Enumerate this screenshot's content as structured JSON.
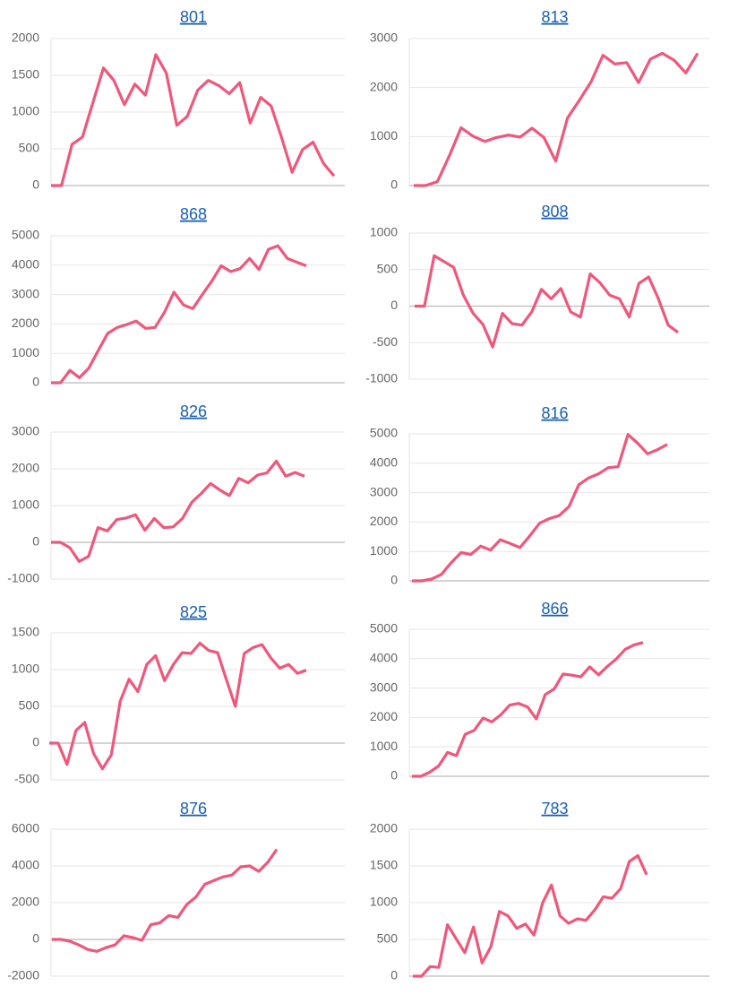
{
  "chart_data": [
    {
      "type": "line",
      "title": "801",
      "color": "#f0577a",
      "ylim": [
        0,
        2000
      ],
      "yticks": [
        0,
        500,
        1000,
        1500,
        2000
      ],
      "grid": true,
      "values": [
        0,
        0,
        560,
        660,
        1130,
        1600,
        1430,
        1100,
        1380,
        1230,
        1780,
        1530,
        820,
        940,
        1300,
        1430,
        1360,
        1250,
        1400,
        850,
        1200,
        1080,
        650,
        180,
        490,
        590,
        300,
        130
      ]
    },
    {
      "type": "line",
      "title": "813",
      "color": "#f0577a",
      "ylim": [
        0,
        3000
      ],
      "yticks": [
        0,
        1000,
        2000,
        3000
      ],
      "grid": true,
      "values": [
        0,
        0,
        80,
        600,
        1180,
        1010,
        900,
        980,
        1030,
        990,
        1170,
        980,
        500,
        1380,
        1740,
        2120,
        2660,
        2480,
        2510,
        2100,
        2580,
        2700,
        2560,
        2300,
        2700
      ]
    },
    {
      "type": "line",
      "title": "868",
      "color": "#f0577a",
      "ylim": [
        0,
        5000
      ],
      "yticks": [
        0,
        1000,
        2000,
        3000,
        4000,
        5000
      ],
      "grid": true,
      "values": [
        0,
        0,
        420,
        170,
        500,
        1100,
        1680,
        1880,
        1980,
        2100,
        1850,
        1880,
        2400,
        3080,
        2650,
        2520,
        3000,
        3450,
        3980,
        3780,
        3880,
        4230,
        3850,
        4540,
        4660,
        4230,
        4100,
        3980
      ]
    },
    {
      "type": "line",
      "title": "808",
      "color": "#f0577a",
      "ylim": [
        -1000,
        1000
      ],
      "yticks": [
        -1000,
        -500,
        0,
        500,
        1000
      ],
      "grid": true,
      "values": [
        0,
        0,
        690,
        610,
        530,
        150,
        -100,
        -250,
        -560,
        -100,
        -240,
        -260,
        -80,
        230,
        100,
        240,
        -80,
        -150,
        440,
        320,
        150,
        100,
        -150,
        310,
        400,
        100,
        -260,
        -360
      ]
    },
    {
      "type": "line",
      "title": "826",
      "color": "#f0577a",
      "ylim": [
        -1000,
        3000
      ],
      "yticks": [
        -1000,
        0,
        1000,
        2000,
        3000
      ],
      "grid": true,
      "values": [
        0,
        0,
        -150,
        -520,
        -380,
        400,
        310,
        620,
        660,
        750,
        330,
        650,
        400,
        420,
        650,
        1090,
        1330,
        1600,
        1420,
        1270,
        1740,
        1620,
        1830,
        1890,
        2210,
        1800,
        1900,
        1800
      ]
    },
    {
      "type": "line",
      "title": "816",
      "color": "#f0577a",
      "ylim": [
        0,
        5000
      ],
      "yticks": [
        0,
        1000,
        2000,
        3000,
        4000,
        5000
      ],
      "grid": true,
      "values": [
        0,
        0,
        60,
        220,
        620,
        960,
        900,
        1180,
        1050,
        1400,
        1270,
        1130,
        1530,
        1960,
        2120,
        2220,
        2530,
        3270,
        3500,
        3640,
        3850,
        3880,
        4980,
        4680,
        4320,
        4460,
        4640
      ]
    },
    {
      "type": "line",
      "title": "825",
      "color": "#f0577a",
      "ylim": [
        -500,
        1500
      ],
      "yticks": [
        -500,
        0,
        500,
        1000,
        1500
      ],
      "grid": true,
      "values": [
        0,
        0,
        -290,
        170,
        280,
        -140,
        -350,
        -160,
        570,
        870,
        700,
        1070,
        1190,
        850,
        1070,
        1230,
        1220,
        1360,
        1260,
        1230,
        860,
        500,
        1220,
        1300,
        1340,
        1160,
        1020,
        1070,
        950,
        990
      ]
    },
    {
      "type": "line",
      "title": "866",
      "color": "#f0577a",
      "ylim": [
        0,
        5000
      ],
      "yticks": [
        0,
        1000,
        2000,
        3000,
        4000,
        5000
      ],
      "grid": true,
      "values": [
        0,
        0,
        140,
        350,
        810,
        700,
        1430,
        1560,
        1980,
        1850,
        2090,
        2420,
        2480,
        2360,
        1950,
        2780,
        2970,
        3480,
        3440,
        3380,
        3720,
        3450,
        3740,
        3990,
        4320,
        4470,
        4550
      ]
    },
    {
      "type": "line",
      "title": "876",
      "color": "#f0577a",
      "ylim": [
        -2000,
        6000
      ],
      "yticks": [
        -2000,
        0,
        2000,
        4000,
        6000
      ],
      "grid": true,
      "values": [
        0,
        0,
        -100,
        -300,
        -550,
        -650,
        -450,
        -300,
        200,
        100,
        -50,
        800,
        900,
        1300,
        1200,
        1900,
        2300,
        3000,
        3200,
        3400,
        3500,
        3950,
        4000,
        3700,
        4200,
        4900
      ]
    },
    {
      "type": "line",
      "title": "783",
      "color": "#f0577a",
      "ylim": [
        0,
        2000
      ],
      "yticks": [
        0,
        500,
        1000,
        1500,
        2000
      ],
      "grid": true,
      "values": [
        0,
        0,
        130,
        120,
        700,
        510,
        320,
        670,
        180,
        400,
        880,
        820,
        650,
        710,
        560,
        1000,
        1240,
        820,
        720,
        780,
        760,
        900,
        1080,
        1060,
        1190,
        1560,
        1640,
        1380
      ]
    }
  ]
}
